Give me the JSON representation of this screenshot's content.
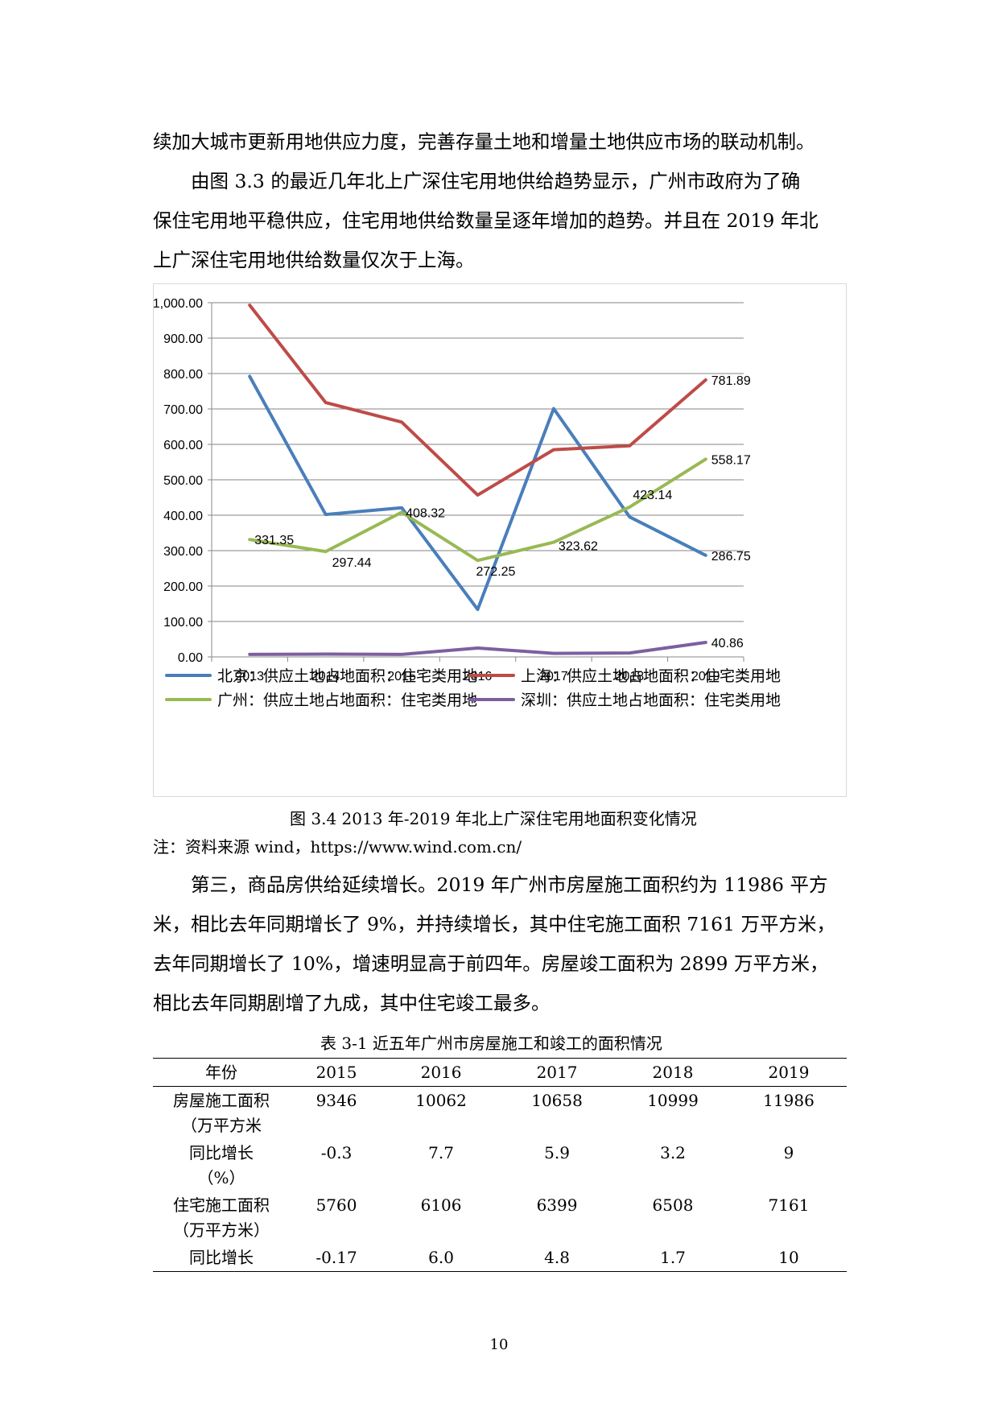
{
  "paragraphs": {
    "p1": {
      "lines": [
        "续加大城市更新用地供应力度，完善存量土地和增量土地供应市场的联动机制。"
      ]
    },
    "p2": {
      "lines": [
        "由图 3.3 的最近几年北上广深住宅用地供给趋势显示，广州市政府为了确",
        "保住宅用地平稳供应，住宅用地供给数量呈逐年增加的趋势。并且在 2019 年北",
        "上广深住宅用地供给数量仅次于上海。"
      ]
    },
    "p3": {
      "lines": [
        "第三，商品房供给延续增长。2019 年广州市房屋施工面积约为 11986 平方",
        "米，相比去年同期增长了 9%，并持续增长，其中住宅施工面积 7161 万平方米，",
        "去年同期增长了 10%，增速明显高于前四年。房屋竣工面积为 2899 万平方米，",
        "相比去年同期剧增了九成，其中住宅竣工最多。"
      ]
    }
  },
  "figure": {
    "caption": "图 3.4 2013 年-2019 年北上广深住宅用地面积变化情况",
    "note": "注：资料来源 wind，https://www.wind.com.cn/"
  },
  "chart_data": {
    "type": "line",
    "categories": [
      "2013",
      "2014",
      "2015",
      "2016",
      "2017",
      "2018",
      "2019"
    ],
    "ylim": [
      0,
      1000
    ],
    "yticks": [
      "0.00",
      "100.00",
      "200.00",
      "300.00",
      "400.00",
      "500.00",
      "600.00",
      "700.00",
      "800.00",
      "900.00",
      "1,000.00"
    ],
    "ytick_values": [
      0,
      100,
      200,
      300,
      400,
      500,
      600,
      700,
      800,
      900,
      1000
    ],
    "grid": true,
    "legend_position": "bottom",
    "series": [
      {
        "name": "北京：供应土地占地面积：住宅类用地",
        "color": "#4a7ebb",
        "values": [
          792,
          402,
          421,
          134,
          701,
          395,
          286.75
        ],
        "labels": [
          "",
          "",
          "",
          "",
          "",
          "",
          "286.75"
        ]
      },
      {
        "name": "上海：供应土地占地面积：住宅类用地",
        "color": "#be4b48",
        "values": [
          993,
          718,
          663,
          457,
          585,
          596,
          781.89
        ],
        "labels": [
          "",
          "",
          "",
          "",
          "",
          "",
          "781.89"
        ]
      },
      {
        "name": "广州：供应土地占地面积：住宅类用地",
        "color": "#98b954",
        "values": [
          331.35,
          297.44,
          408.32,
          272.25,
          323.62,
          423.14,
          558.17
        ],
        "labels": [
          "331.35",
          "297.44",
          "408.32",
          "272.25",
          "323.62",
          "423.14",
          "558.17"
        ]
      },
      {
        "name": "深圳：供应土地占地面积：住宅类用地",
        "color": "#7d5fa0",
        "values": [
          7,
          8,
          7,
          25,
          10,
          11,
          40.86
        ],
        "labels": [
          "",
          "",
          "",
          "",
          "",
          "",
          "40.86"
        ]
      }
    ]
  },
  "table": {
    "caption": "表 3-1 近五年广州市房屋施工和竣工的面积情况",
    "header": [
      "年份",
      "2015",
      "2016",
      "2017",
      "2018",
      "2019"
    ],
    "rows": [
      {
        "label": "房屋施工面积",
        "sublabel": "（万平方米",
        "values": [
          "9346",
          "10062",
          "10658",
          "10999",
          "11986"
        ]
      },
      {
        "label": "同比增长",
        "sublabel": "（%）",
        "values": [
          "-0.3",
          "7.7",
          "5.9",
          "3.2",
          "9"
        ]
      },
      {
        "label": "住宅施工面积",
        "sublabel": "（万平方米）",
        "values": [
          "5760",
          "6106",
          "6399",
          "6508",
          "7161"
        ]
      },
      {
        "label": "同比增长",
        "sublabel": "",
        "values": [
          "-0.17",
          "6.0",
          "4.8",
          "1.7",
          "10"
        ]
      }
    ]
  },
  "page_number": "10"
}
